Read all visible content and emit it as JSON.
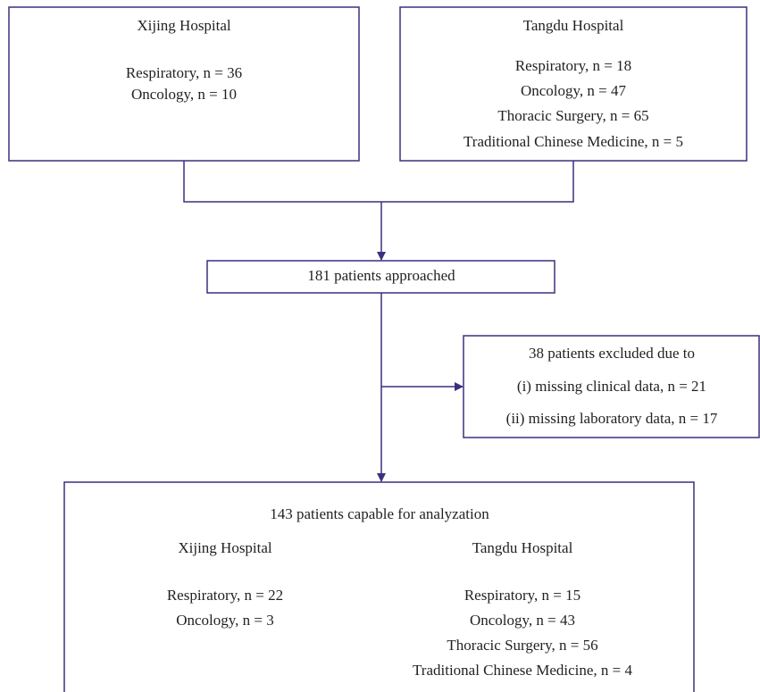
{
  "nodes": [
    {
      "title": "Xijing Hospital",
      "lines": [
        "Respiratory, n = 36",
        "Oncology, n = 10"
      ]
    },
    {
      "title": "Tangdu Hospital",
      "lines": [
        "Respiratory, n = 18",
        "Oncology, n = 47",
        "Thoracic Surgery, n = 65",
        "Traditional Chinese Medicine, n = 5"
      ]
    },
    {
      "title": "181 patients approached"
    },
    {
      "title": "38 patients excluded due to",
      "lines": [
        "(i) missing clinical data, n = 21",
        "(ii) missing laboratory data, n = 17"
      ]
    },
    {
      "title": "143 patients capable for analyzation",
      "columns": [
        {
          "title": "Xijing Hospital",
          "lines": [
            "Respiratory, n = 22",
            "Oncology, n = 3"
          ]
        },
        {
          "title": "Tangdu Hospital",
          "lines": [
            "Respiratory, n = 15",
            "Oncology, n = 43",
            "Thoracic Surgery, n = 56",
            "Traditional Chinese Medicine, n = 4"
          ]
        }
      ]
    }
  ]
}
